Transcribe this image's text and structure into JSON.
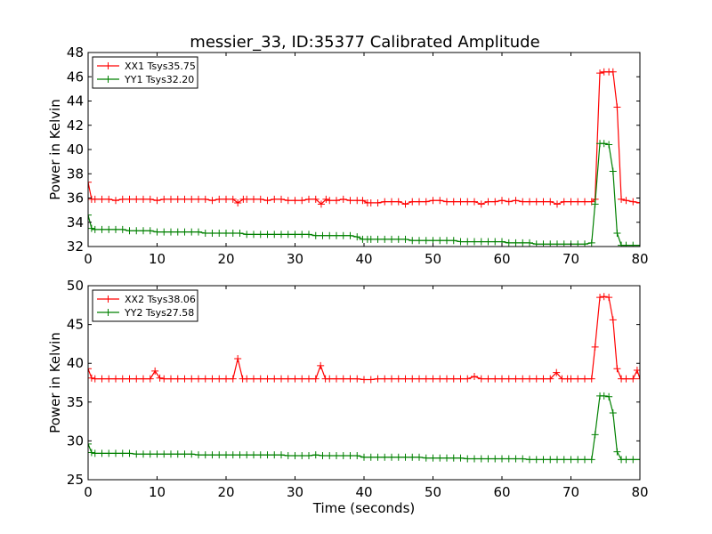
{
  "figure": {
    "title": "messier_33, ID:35377 Calibrated Amplitude"
  },
  "chart_data": [
    {
      "type": "line",
      "xlabel": "",
      "ylabel": "Power in Kelvin",
      "xlim": [
        0,
        80
      ],
      "ylim": [
        32,
        48
      ],
      "xticks": [
        0,
        10,
        20,
        30,
        40,
        50,
        60,
        70,
        80
      ],
      "yticks": [
        32,
        34,
        36,
        38,
        40,
        42,
        44,
        46,
        48
      ],
      "grid": false,
      "legend_position": "top-left",
      "series": [
        {
          "name": "XX1 Tsys35.75",
          "color": "#ff0000",
          "marker": "+",
          "x": [
            0,
            0.5,
            1,
            2,
            3,
            4,
            5,
            6,
            7,
            8,
            9,
            10,
            11,
            12,
            13,
            14,
            15,
            16,
            17,
            18,
            19,
            20,
            21,
            21.7,
            22.5,
            23,
            24,
            25,
            26,
            27,
            28,
            29,
            30,
            31,
            32,
            33,
            33.8,
            34.5,
            35,
            36,
            37,
            38,
            39,
            39.8,
            40.5,
            41,
            42,
            43,
            44,
            45,
            46,
            47,
            48,
            49,
            50,
            51,
            52,
            53,
            54,
            55,
            56,
            57,
            58,
            59,
            60,
            61,
            62,
            63,
            64,
            65,
            66,
            67,
            68,
            69,
            70,
            71,
            72,
            73,
            73.5,
            74.2,
            74.8,
            75.5,
            76.1,
            76.7,
            77.3,
            78,
            79,
            80
          ],
          "y": [
            37.3,
            35.9,
            35.9,
            35.9,
            35.9,
            35.8,
            35.9,
            35.9,
            35.9,
            35.9,
            35.9,
            35.8,
            35.9,
            35.9,
            35.9,
            35.9,
            35.9,
            35.9,
            35.9,
            35.8,
            35.9,
            35.9,
            35.9,
            35.6,
            35.9,
            35.9,
            35.9,
            35.9,
            35.8,
            35.9,
            35.9,
            35.8,
            35.8,
            35.8,
            35.9,
            35.9,
            35.5,
            35.9,
            35.8,
            35.8,
            35.9,
            35.8,
            35.8,
            35.8,
            35.6,
            35.6,
            35.6,
            35.7,
            35.7,
            35.7,
            35.5,
            35.7,
            35.7,
            35.7,
            35.8,
            35.8,
            35.7,
            35.7,
            35.7,
            35.7,
            35.7,
            35.5,
            35.7,
            35.7,
            35.8,
            35.7,
            35.8,
            35.7,
            35.7,
            35.7,
            35.7,
            35.7,
            35.5,
            35.7,
            35.7,
            35.7,
            35.7,
            35.7,
            35.9,
            46.3,
            46.4,
            46.4,
            46.4,
            43.5,
            35.9,
            35.8,
            35.7,
            35.6
          ]
        },
        {
          "name": "YY1 Tsys32.20",
          "color": "#008000",
          "marker": "+",
          "x": [
            0,
            0.5,
            1,
            2,
            3,
            4,
            5,
            6,
            7,
            8,
            9,
            10,
            11,
            12,
            13,
            14,
            15,
            16,
            17,
            18,
            19,
            20,
            21,
            22,
            23,
            24,
            25,
            26,
            27,
            28,
            29,
            30,
            31,
            32,
            33,
            34,
            35,
            36,
            37,
            38,
            39,
            39.8,
            40.5,
            41,
            42,
            43,
            44,
            45,
            46,
            47,
            48,
            49,
            50,
            51,
            52,
            53,
            54,
            55,
            56,
            57,
            58,
            59,
            60,
            61,
            62,
            63,
            64,
            65,
            66,
            67,
            68,
            69,
            70,
            71,
            72,
            73,
            73.5,
            74.2,
            74.8,
            75.5,
            76.1,
            76.7,
            77.3,
            78,
            79,
            80
          ],
          "y": [
            34.6,
            33.5,
            33.4,
            33.4,
            33.4,
            33.4,
            33.4,
            33.3,
            33.3,
            33.3,
            33.3,
            33.2,
            33.2,
            33.2,
            33.2,
            33.2,
            33.2,
            33.2,
            33.1,
            33.1,
            33.1,
            33.1,
            33.1,
            33.1,
            33.0,
            33.0,
            33.0,
            33.0,
            33.0,
            33.0,
            33.0,
            33.0,
            33.0,
            33.0,
            32.9,
            32.9,
            32.9,
            32.9,
            32.9,
            32.9,
            32.8,
            32.6,
            32.6,
            32.6,
            32.6,
            32.6,
            32.6,
            32.6,
            32.6,
            32.5,
            32.5,
            32.5,
            32.5,
            32.5,
            32.5,
            32.5,
            32.4,
            32.4,
            32.4,
            32.4,
            32.4,
            32.4,
            32.4,
            32.3,
            32.3,
            32.3,
            32.3,
            32.2,
            32.2,
            32.2,
            32.2,
            32.2,
            32.2,
            32.2,
            32.2,
            32.3,
            35.5,
            40.5,
            40.5,
            40.4,
            38.2,
            33.1,
            32.1,
            32.1,
            32.1,
            32.1
          ]
        }
      ]
    },
    {
      "type": "line",
      "xlabel": "Time (seconds)",
      "ylabel": "Power in Kelvin",
      "xlim": [
        0,
        80
      ],
      "ylim": [
        25,
        50
      ],
      "xticks": [
        0,
        10,
        20,
        30,
        40,
        50,
        60,
        70,
        80
      ],
      "yticks": [
        25,
        30,
        35,
        40,
        45,
        50
      ],
      "grid": false,
      "legend_position": "top-left",
      "series": [
        {
          "name": "XX2 Tsys38.06",
          "color": "#ff0000",
          "marker": "+",
          "x": [
            0,
            0.5,
            1,
            2,
            3,
            4,
            5,
            6,
            7,
            8,
            9,
            9.7,
            10.4,
            11,
            12,
            13,
            14,
            15,
            16,
            17,
            18,
            19,
            20,
            21,
            21.7,
            22.4,
            23,
            24,
            25,
            26,
            27,
            28,
            29,
            30,
            31,
            32,
            33,
            33.7,
            34.4,
            35,
            36,
            37,
            38,
            39,
            40,
            41,
            42,
            43,
            44,
            45,
            46,
            47,
            48,
            49,
            50,
            51,
            52,
            53,
            54,
            55,
            56,
            57,
            58,
            59,
            60,
            61,
            62,
            63,
            64,
            65,
            66,
            67,
            67.9,
            68.7,
            69.5,
            70,
            71,
            72,
            73,
            73.5,
            74.2,
            74.8,
            75.5,
            76.1,
            76.7,
            77.3,
            78,
            79,
            79.6,
            80
          ],
          "y": [
            39.3,
            38.1,
            38.0,
            38.0,
            38.0,
            38.0,
            38.0,
            38.0,
            38.0,
            38.0,
            38.0,
            39.0,
            38.1,
            38.0,
            38.0,
            38.0,
            38.0,
            38.0,
            38.0,
            38.0,
            38.0,
            38.0,
            38.0,
            38.0,
            40.6,
            38.0,
            38.0,
            38.0,
            38.0,
            38.0,
            38.0,
            38.0,
            38.0,
            38.0,
            38.0,
            38.0,
            38.0,
            39.7,
            38.0,
            38.0,
            38.0,
            38.0,
            38.0,
            38.0,
            37.9,
            37.9,
            38.0,
            38.0,
            38.0,
            38.0,
            38.0,
            38.0,
            38.0,
            38.0,
            38.0,
            38.0,
            38.0,
            38.0,
            38.0,
            38.0,
            38.3,
            38.0,
            38.0,
            38.0,
            38.0,
            38.0,
            38.0,
            38.0,
            38.0,
            38.0,
            38.0,
            38.0,
            38.8,
            38.0,
            38.0,
            38.0,
            38.0,
            38.0,
            38.0,
            42.1,
            48.5,
            48.6,
            48.5,
            45.6,
            39.3,
            38.0,
            38.0,
            38.0,
            39.1,
            38.0
          ]
        },
        {
          "name": "YY2 Tsys27.58",
          "color": "#008000",
          "marker": "+",
          "x": [
            0,
            0.5,
            1,
            2,
            3,
            4,
            5,
            6,
            7,
            8,
            9,
            10,
            11,
            12,
            13,
            14,
            15,
            16,
            17,
            18,
            19,
            20,
            21,
            22,
            23,
            24,
            25,
            26,
            27,
            28,
            29,
            30,
            31,
            32,
            33,
            34,
            35,
            36,
            37,
            38,
            39,
            40,
            41,
            42,
            43,
            44,
            45,
            46,
            47,
            48,
            49,
            50,
            51,
            52,
            53,
            54,
            55,
            56,
            57,
            58,
            59,
            60,
            61,
            62,
            63,
            64,
            65,
            66,
            67,
            68,
            69,
            70,
            71,
            72,
            73,
            73.5,
            74.2,
            74.8,
            75.5,
            76.1,
            76.7,
            77.3,
            78,
            79,
            80
          ],
          "y": [
            29.6,
            28.5,
            28.4,
            28.4,
            28.4,
            28.4,
            28.4,
            28.4,
            28.3,
            28.3,
            28.3,
            28.3,
            28.3,
            28.3,
            28.3,
            28.3,
            28.3,
            28.2,
            28.2,
            28.2,
            28.2,
            28.2,
            28.2,
            28.2,
            28.2,
            28.2,
            28.2,
            28.2,
            28.2,
            28.2,
            28.1,
            28.1,
            28.1,
            28.1,
            28.2,
            28.1,
            28.1,
            28.1,
            28.1,
            28.1,
            28.1,
            27.9,
            27.9,
            27.9,
            27.9,
            27.9,
            27.9,
            27.9,
            27.9,
            27.9,
            27.8,
            27.8,
            27.8,
            27.8,
            27.8,
            27.8,
            27.7,
            27.7,
            27.7,
            27.7,
            27.7,
            27.7,
            27.7,
            27.7,
            27.7,
            27.6,
            27.6,
            27.6,
            27.6,
            27.6,
            27.6,
            27.6,
            27.6,
            27.6,
            27.6,
            30.8,
            35.8,
            35.8,
            35.7,
            33.6,
            28.6,
            27.6,
            27.6,
            27.6,
            27.6
          ]
        }
      ]
    }
  ]
}
